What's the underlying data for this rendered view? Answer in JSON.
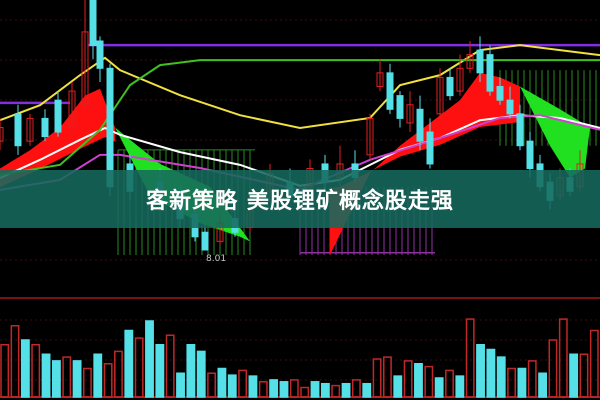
{
  "headline": "客新策略 美股锂矿概念股走强",
  "chart_data": {
    "type": "line",
    "subtype": "candlestick with moving averages and volume",
    "title": "",
    "grid": true,
    "low_annotation": "8.01",
    "price_range": [
      7.5,
      13.5
    ],
    "colors": {
      "up": "#e02020",
      "down": "#55e0e8",
      "ma_yellow": "#f0e040",
      "ma_white": "#ffffff",
      "ma_magenta": "#d040d0",
      "ma_green": "#40c020",
      "band_red": "#ff1010",
      "band_green": "#20e020",
      "level_purple": "#8030e0",
      "banner": "#16695c"
    },
    "series": [
      {
        "color": "#f0e040",
        "points": [
          [
            0,
            10.86
          ],
          [
            4,
            11.19
          ],
          [
            8,
            11.85
          ],
          [
            10.5,
            12.23
          ],
          [
            12,
            11.96
          ],
          [
            18,
            11.41
          ],
          [
            24,
            10.97
          ],
          [
            30,
            10.69
          ],
          [
            37,
            10.91
          ],
          [
            40,
            11.63
          ],
          [
            44,
            11.85
          ],
          [
            48,
            12.4
          ],
          [
            52,
            12.51
          ],
          [
            56,
            12.4
          ],
          [
            60,
            12.29
          ]
        ]
      },
      {
        "color": "#ffffff",
        "points": [
          [
            0,
            9.59
          ],
          [
            4,
            9.99
          ],
          [
            8,
            10.43
          ],
          [
            10.5,
            10.69
          ],
          [
            12,
            10.54
          ],
          [
            18,
            10.16
          ],
          [
            24,
            9.88
          ],
          [
            30,
            9.42
          ],
          [
            34,
            9.55
          ],
          [
            37,
            9.88
          ],
          [
            40,
            10.21
          ],
          [
            44,
            10.47
          ],
          [
            48,
            10.86
          ],
          [
            52,
            10.97
          ],
          [
            56,
            10.91
          ],
          [
            60,
            10.69
          ]
        ]
      },
      {
        "color": "#d040d0",
        "points": [
          [
            0,
            9.33
          ],
          [
            6,
            9.55
          ],
          [
            10,
            10.1
          ],
          [
            12,
            10.1
          ],
          [
            20,
            9.81
          ],
          [
            30,
            9.33
          ],
          [
            37,
            9.99
          ],
          [
            45,
            10.54
          ],
          [
            50,
            10.91
          ],
          [
            54,
            10.97
          ],
          [
            60,
            10.65
          ]
        ]
      },
      {
        "color": "#40c020",
        "points": [
          [
            0,
            9.66
          ],
          [
            6,
            9.88
          ],
          [
            10,
            10.65
          ],
          [
            13,
            11.63
          ],
          [
            16,
            12.07
          ],
          [
            20,
            12.18
          ],
          [
            60,
            12.18
          ]
        ]
      }
    ],
    "levels": [
      {
        "color": "#8030e0",
        "value": 12.51,
        "from": 8.8,
        "to": 60
      },
      {
        "color": "#8030e0",
        "value": 11.24,
        "from": 0,
        "to": 7
      }
    ],
    "candles": [
      [
        0,
        10.4,
        10.7,
        10.9,
        10.2
      ],
      [
        1.8,
        11.0,
        10.3,
        11.2,
        10.1
      ],
      [
        3,
        10.4,
        10.9,
        11.0,
        10.3
      ],
      [
        4.5,
        10.9,
        10.5,
        11.1,
        10.4
      ],
      [
        5.8,
        11.3,
        10.6,
        11.5,
        10.5
      ],
      [
        7.2,
        10.7,
        11.5,
        11.7,
        10.6
      ],
      [
        8.5,
        11.2,
        12.8,
        13.5,
        11.1
      ],
      [
        9.3,
        13.5,
        12.5,
        13.5,
        12.2
      ],
      [
        10,
        12.6,
        12.0,
        12.7,
        11.7
      ],
      [
        11,
        12.0,
        9.4,
        12.1,
        9.2
      ],
      [
        13,
        9.9,
        9.3,
        10.1,
        9.1
      ],
      [
        16,
        9.5,
        9.1,
        9.8,
        8.9
      ],
      [
        18,
        9.2,
        8.7,
        9.4,
        8.5
      ],
      [
        19.5,
        8.8,
        8.3,
        9.0,
        8.2
      ],
      [
        20.5,
        8.4,
        8.01,
        8.6,
        8.01
      ],
      [
        22,
        8.2,
        8.6,
        8.8,
        8.1
      ],
      [
        23.5,
        8.7,
        8.4,
        8.9,
        8.3
      ],
      [
        25,
        8.5,
        8.9,
        9.2,
        8.4
      ],
      [
        27,
        9.3,
        9.7,
        9.9,
        9.1
      ],
      [
        29,
        9.5,
        9.2,
        9.8,
        9.1
      ],
      [
        31,
        9.4,
        9.8,
        10.0,
        9.3
      ],
      [
        32.5,
        9.9,
        9.5,
        10.1,
        9.3
      ],
      [
        34,
        9.6,
        9.9,
        10.3,
        9.4
      ],
      [
        35.5,
        9.9,
        9.6,
        10.2,
        9.5
      ],
      [
        37,
        10.1,
        10.9,
        11.0,
        10.0
      ],
      [
        38,
        11.6,
        11.9,
        12.2,
        11.5
      ],
      [
        39,
        11.9,
        11.1,
        12.1,
        11.0
      ],
      [
        40,
        11.4,
        10.9,
        11.5,
        10.7
      ],
      [
        41,
        10.8,
        11.2,
        11.5,
        10.6
      ],
      [
        42,
        11.1,
        10.4,
        11.4,
        10.2
      ],
      [
        43,
        10.6,
        9.9,
        10.9,
        9.8
      ],
      [
        44,
        11.0,
        11.8,
        12.0,
        10.9
      ],
      [
        45,
        11.8,
        11.4,
        12.0,
        11.3
      ],
      [
        46,
        11.5,
        12.0,
        12.3,
        11.4
      ],
      [
        47,
        12.0,
        12.3,
        12.6,
        11.9
      ],
      [
        48,
        12.4,
        11.9,
        12.7,
        11.7
      ],
      [
        49,
        12.3,
        11.5,
        12.5,
        11.4
      ],
      [
        50,
        11.6,
        11.3,
        11.8,
        11.2
      ],
      [
        51,
        11.3,
        11.0,
        11.6,
        10.9
      ],
      [
        52,
        11.0,
        10.3,
        11.2,
        10.2
      ],
      [
        53,
        10.4,
        9.8,
        10.6,
        9.6
      ],
      [
        54,
        9.9,
        9.4,
        10.1,
        9.3
      ],
      [
        55,
        9.5,
        9.1,
        9.7,
        8.9
      ],
      [
        56,
        9.2,
        9.6,
        9.8,
        9.1
      ],
      [
        57,
        9.6,
        9.3,
        9.8,
        9.2
      ],
      [
        58,
        9.4,
        9.9,
        10.2,
        9.3
      ]
    ],
    "volume": [
      [
        "up",
        55
      ],
      [
        "up",
        75
      ],
      [
        "down",
        60
      ],
      [
        "up",
        55
      ],
      [
        "down",
        45
      ],
      [
        "down",
        38
      ],
      [
        "up",
        42
      ],
      [
        "down",
        38
      ],
      [
        "up",
        30
      ],
      [
        "down",
        45
      ],
      [
        "up",
        35
      ],
      [
        "up",
        48
      ],
      [
        "down",
        70
      ],
      [
        "up",
        62
      ],
      [
        "down",
        80
      ],
      [
        "down",
        55
      ],
      [
        "up",
        65
      ],
      [
        "down",
        25
      ],
      [
        "down",
        55
      ],
      [
        "down",
        48
      ],
      [
        "up",
        25
      ],
      [
        "down",
        30
      ],
      [
        "down",
        23
      ],
      [
        "up",
        28
      ],
      [
        "down",
        22
      ],
      [
        "up",
        16
      ],
      [
        "down",
        18
      ],
      [
        "down",
        16
      ],
      [
        "up",
        18
      ],
      [
        "up",
        10
      ],
      [
        "down",
        16
      ],
      [
        "down",
        14
      ],
      [
        "up",
        12
      ],
      [
        "down",
        14
      ],
      [
        "up",
        18
      ],
      [
        "down",
        14
      ],
      [
        "up",
        40
      ],
      [
        "up",
        42
      ],
      [
        "down",
        22
      ],
      [
        "up",
        38
      ],
      [
        "down",
        35
      ],
      [
        "up",
        32
      ],
      [
        "down",
        20
      ],
      [
        "up",
        28
      ],
      [
        "down",
        22
      ],
      [
        "up",
        82
      ],
      [
        "down",
        55
      ],
      [
        "down",
        50
      ],
      [
        "down",
        42
      ],
      [
        "up",
        30
      ],
      [
        "down",
        30
      ],
      [
        "up",
        38
      ],
      [
        "down",
        25
      ],
      [
        "up",
        60
      ],
      [
        "up",
        82
      ],
      [
        "down",
        45
      ],
      [
        "up",
        45
      ],
      [
        "up",
        70
      ]
    ]
  }
}
